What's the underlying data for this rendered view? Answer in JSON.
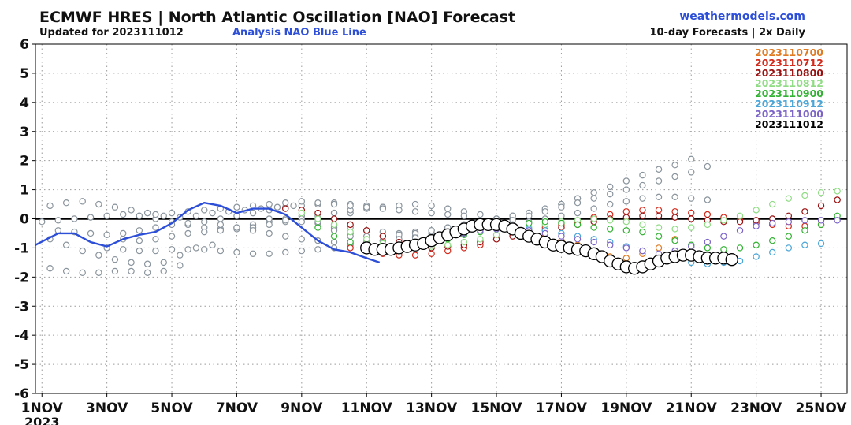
{
  "header": {
    "title": "ECMWF HRES | North Atlantic Oscillation [NAO] Forecast",
    "updated": "Updated for 2023111012",
    "analysis_label": "Analysis NAO Blue Line",
    "site": "weathermodels.com",
    "subtitle": "10-day Forecasts | 2x Daily"
  },
  "colors": {
    "analysis": "#2d4fd8",
    "old_runs": "#8a949c",
    "latest_run": "#000000"
  },
  "chart_data": {
    "type": "line",
    "title": "ECMWF HRES | North Atlantic Oscillation [NAO] Forecast",
    "xlabel": "",
    "ylabel": "",
    "x_unit": "days since 1 Nov 2023 00z",
    "xlim": [
      -0.2,
      24.8
    ],
    "ylim": [
      -6,
      6
    ],
    "yticks": [
      -6,
      -5,
      -4,
      -3,
      -2,
      -1,
      0,
      1,
      2,
      3,
      4,
      5,
      6
    ],
    "xticks": [
      {
        "x": 0,
        "label": "1NOV",
        "sublabel": "2023"
      },
      {
        "x": 2,
        "label": "3NOV"
      },
      {
        "x": 4,
        "label": "5NOV"
      },
      {
        "x": 6,
        "label": "7NOV"
      },
      {
        "x": 8,
        "label": "9NOV"
      },
      {
        "x": 10,
        "label": "11NOV"
      },
      {
        "x": 12,
        "label": "13NOV"
      },
      {
        "x": 14,
        "label": "15NOV"
      },
      {
        "x": 16,
        "label": "17NOV"
      },
      {
        "x": 18,
        "label": "19NOV"
      },
      {
        "x": 20,
        "label": "21NOV"
      },
      {
        "x": 22,
        "label": "23NOV"
      },
      {
        "x": 24,
        "label": "25NOV"
      }
    ],
    "grid": true,
    "legend_position": "top-right",
    "legend": [
      {
        "label": "2023110700",
        "color": "#e07b22"
      },
      {
        "label": "2023110712",
        "color": "#d42a1b"
      },
      {
        "label": "2023110800",
        "color": "#9a0f0f"
      },
      {
        "label": "2023110812",
        "color": "#8fdc84"
      },
      {
        "label": "2023110900",
        "color": "#32b232"
      },
      {
        "label": "2023110912",
        "color": "#4aa6d8"
      },
      {
        "label": "2023111000",
        "color": "#7b63c7"
      },
      {
        "label": "2023111012",
        "color": "#000000"
      }
    ],
    "analysis": {
      "name": "Analysis NAO Blue Line",
      "color": "#2d4fd8",
      "x": [
        -0.2,
        0.5,
        1.0,
        1.5,
        2.0,
        2.5,
        3.0,
        3.5,
        4.0,
        4.5,
        5.0,
        5.5,
        6.0,
        6.5,
        7.0,
        7.5,
        8.0,
        8.5,
        9.0,
        9.5,
        10.0,
        10.4
      ],
      "y": [
        -0.9,
        -0.5,
        -0.5,
        -0.8,
        -0.95,
        -0.7,
        -0.55,
        -0.45,
        -0.15,
        0.3,
        0.55,
        0.45,
        0.2,
        0.35,
        0.35,
        0.15,
        -0.3,
        -0.75,
        -1.05,
        -1.15,
        -1.35,
        -1.5
      ]
    },
    "series": [
      {
        "color": "#8a949c",
        "x0": -0.25,
        "values": [
          0.3,
          0.45,
          0.55,
          0.6,
          0.5,
          0.4,
          0.3,
          0.2,
          0.1,
          0.05,
          0.1,
          0.2,
          0.25,
          0.3,
          0.35,
          0.4,
          0.45
        ]
      },
      {
        "color": "#8a949c",
        "x0": -0.25,
        "values": [
          -1.6,
          -1.7,
          -1.8,
          -1.85,
          -1.85,
          -1.8,
          -1.8,
          -1.85,
          -1.8,
          -1.6
        ]
      },
      {
        "color": "#8a949c",
        "x0": -0.25,
        "values": [
          -0.5,
          -0.7,
          -0.9,
          -1.1,
          -1.25,
          -1.4,
          -1.5,
          -1.55,
          -1.5,
          -1.25,
          -1.0,
          -0.9
        ]
      },
      {
        "color": "#8a949c",
        "x0": 0.0,
        "values": [
          -0.1,
          -0.05,
          0.0,
          0.05,
          0.1,
          0.15,
          0.1,
          0.0,
          -0.1,
          -0.2,
          -0.3,
          -0.35,
          -0.3,
          -0.2,
          -0.1,
          0.0,
          0.1,
          0.15,
          0.2,
          0.2
        ]
      },
      {
        "color": "#8a949c",
        "x0": 0.5,
        "values": [
          -0.4,
          -0.45,
          -0.5,
          -0.55,
          -0.5,
          -0.4,
          -0.3,
          -0.2,
          -0.15,
          -0.1,
          0.0,
          0.1,
          0.2,
          0.3,
          0.4,
          0.45,
          0.5,
          0.55,
          0.5,
          0.45,
          0.4
        ]
      },
      {
        "color": "#8a949c",
        "x0": 2.0,
        "values": [
          -1.0,
          -1.05,
          -1.1,
          -1.1,
          -1.05,
          -1.05,
          -1.05,
          -1.1,
          -1.15,
          -1.2,
          -1.2,
          -1.15,
          -1.1,
          -1.05,
          -1.0,
          -0.9,
          -0.85
        ]
      },
      {
        "color": "#8a949c",
        "x0": 2.5,
        "values": [
          -0.7,
          -0.75,
          -0.7,
          -0.6,
          -0.5,
          -0.45,
          -0.4,
          -0.35,
          -0.3,
          -0.2,
          -0.1,
          0.0,
          0.1,
          0.2,
          0.3,
          0.35,
          0.4,
          0.45,
          0.5,
          0.45,
          0.35,
          0.25,
          0.15
        ]
      },
      {
        "color": "#8a949c",
        "x0": 3.0,
        "values": [
          0.1,
          0.15,
          0.2,
          0.25,
          0.3,
          0.35,
          0.4,
          0.45,
          0.5,
          0.55,
          0.6,
          0.55,
          0.5,
          0.45,
          0.4,
          0.35,
          0.3,
          0.25,
          0.2,
          0.15,
          0.1
        ]
      },
      {
        "color": "#8a949c",
        "x0": 5.5,
        "values": [
          -0.2,
          -0.3,
          -0.4,
          -0.5,
          -0.6,
          -0.7,
          -0.75,
          -0.8,
          -0.85,
          -0.8,
          -0.75,
          -0.7,
          -0.6,
          -0.5,
          -0.4,
          -0.3,
          -0.2,
          -0.1,
          0.0
        ]
      },
      {
        "color": "#8a949c",
        "x0": 7.0,
        "values": [
          0.0,
          -0.05,
          -0.1,
          -0.15,
          -0.2,
          -0.3,
          -0.4,
          -0.45,
          -0.5,
          -0.45,
          -0.4,
          -0.3,
          -0.2,
          -0.1,
          0.0,
          0.1,
          0.2,
          0.3,
          0.5,
          0.7
        ]
      },
      {
        "color": "#8a949c",
        "x0": 8.5,
        "values": [
          -0.1,
          -0.3,
          -0.5,
          -0.6,
          -0.6,
          -0.55,
          -0.5,
          -0.4,
          -0.3,
          -0.2,
          -0.1,
          0.0,
          0.1,
          0.2,
          0.35,
          0.5,
          0.7,
          0.9,
          1.1,
          1.3,
          1.5,
          1.7,
          1.85,
          2.05
        ]
      },
      {
        "color": "#8a949c",
        "x0": 9.0,
        "values": [
          -0.4,
          -0.6,
          -0.8,
          -0.85,
          -0.85,
          -0.8,
          -0.7,
          -0.6,
          -0.5,
          -0.35,
          -0.2,
          -0.05,
          0.1,
          0.25,
          0.4,
          0.55,
          0.7,
          0.85,
          1.0,
          1.15,
          1.3,
          1.45,
          1.6,
          1.8
        ]
      },
      {
        "color": "#8a949c",
        "x0": 10.0,
        "values": [
          -0.8,
          -0.75,
          -0.7,
          -0.65,
          -0.6,
          -0.55,
          -0.5,
          -0.4,
          -0.3,
          -0.2,
          -0.1,
          0.0,
          0.1,
          0.2,
          0.35,
          0.5,
          0.6,
          0.7,
          0.75,
          0.75,
          0.7,
          0.65
        ]
      },
      {
        "color": "#e07b22",
        "x0": 13.5,
        "values": [
          -0.3,
          -0.35,
          -0.4,
          -0.5,
          -0.6,
          -0.75,
          -0.9,
          -1.1,
          -1.3,
          -1.35,
          -1.2,
          -1.0,
          -0.7
        ]
      },
      {
        "color": "#d42a1b",
        "x0": 9.5,
        "values": [
          -1.0,
          -1.1,
          -1.2,
          -1.25,
          -1.25,
          -1.2,
          -1.1,
          -1.0,
          -0.9,
          -0.7,
          -0.55,
          -0.4,
          -0.3,
          -0.2,
          -0.1,
          0.05,
          0.15,
          0.25,
          0.3,
          0.3,
          0.25,
          0.2,
          0.15,
          0.05,
          -0.05,
          -0.15,
          -0.2,
          -0.25,
          -0.25,
          -0.2
        ]
      },
      {
        "color": "#9a0f0f",
        "x0": 7.5,
        "values": [
          0.35,
          0.3,
          0.2,
          0.0,
          -0.2,
          -0.4,
          -0.6,
          -0.8,
          -0.95,
          -1.0,
          -0.95,
          -0.9,
          -0.8,
          -0.7,
          -0.6,
          -0.5,
          -0.4,
          -0.3,
          -0.2,
          -0.1,
          0.0,
          0.05,
          0.1,
          0.1,
          0.05,
          0.0,
          -0.05,
          -0.1,
          -0.1,
          -0.05,
          0.0,
          0.1,
          0.25,
          0.45,
          0.65,
          0.85,
          1.2
        ]
      },
      {
        "color": "#8fdc84",
        "x0": 8.0,
        "values": [
          0.2,
          0.0,
          -0.2,
          -0.45,
          -0.7,
          -0.85,
          -0.95,
          -1.0,
          -0.95,
          -0.9,
          -0.8,
          -0.7,
          -0.55,
          -0.4,
          -0.3,
          -0.2,
          -0.1,
          -0.05,
          0.0,
          -0.05,
          -0.1,
          -0.2,
          -0.3,
          -0.35,
          -0.3,
          -0.2,
          -0.05,
          0.1,
          0.3,
          0.5,
          0.7,
          0.8,
          0.9,
          0.95
        ]
      },
      {
        "color": "#32b232",
        "x0": 8.5,
        "values": [
          -0.3,
          -0.6,
          -0.8,
          -0.95,
          -1.0,
          -0.95,
          -0.9,
          -0.8,
          -0.7,
          -0.55,
          -0.45,
          -0.35,
          -0.25,
          -0.15,
          -0.1,
          -0.15,
          -0.2,
          -0.3,
          -0.35,
          -0.4,
          -0.45,
          -0.6,
          -0.75,
          -0.9,
          -1.0,
          -1.05,
          -1.0,
          -0.9,
          -0.75,
          -0.6,
          -0.4,
          -0.2,
          0.1
        ]
      },
      {
        "color": "#4aa6d8",
        "x0": 11.5,
        "values": [
          -0.8,
          -0.7,
          -0.6,
          -0.5,
          -0.4,
          -0.35,
          -0.3,
          -0.35,
          -0.4,
          -0.5,
          -0.6,
          -0.7,
          -0.8,
          -0.95,
          -1.1,
          -1.25,
          -1.4,
          -1.5,
          -1.55,
          -1.5,
          -1.45,
          -1.3,
          -1.15,
          -1.0,
          -0.9,
          -0.85
        ]
      },
      {
        "color": "#7b63c7",
        "x0": 12.0,
        "values": [
          -0.7,
          -0.6,
          -0.5,
          -0.4,
          -0.35,
          -0.35,
          -0.4,
          -0.5,
          -0.6,
          -0.7,
          -0.8,
          -0.9,
          -1.0,
          -1.1,
          -1.2,
          -1.1,
          -0.95,
          -0.8,
          -0.6,
          -0.4,
          -0.25,
          -0.15,
          -0.1,
          -0.05,
          -0.05,
          -0.05,
          0.0
        ]
      }
    ],
    "latest": {
      "name": "2023111012",
      "color": "#000000",
      "x0": 10.0,
      "values": [
        -1.0,
        -1.05,
        -1.05,
        -1.05,
        -1.0,
        -0.95,
        -0.9,
        -0.85,
        -0.75,
        -0.65,
        -0.55,
        -0.45,
        -0.35,
        -0.25,
        -0.2,
        -0.2,
        -0.2,
        -0.25,
        -0.35,
        -0.5,
        -0.6,
        -0.7,
        -0.8,
        -0.9,
        -0.95,
        -1.0,
        -1.05,
        -1.1,
        -1.2,
        -1.3,
        -1.45,
        -1.55,
        -1.65,
        -1.7,
        -1.65,
        -1.55,
        -1.45,
        -1.35,
        -1.3,
        -1.25,
        -1.25,
        -1.3,
        -1.35,
        -1.35,
        -1.35,
        -1.4
      ]
    }
  }
}
